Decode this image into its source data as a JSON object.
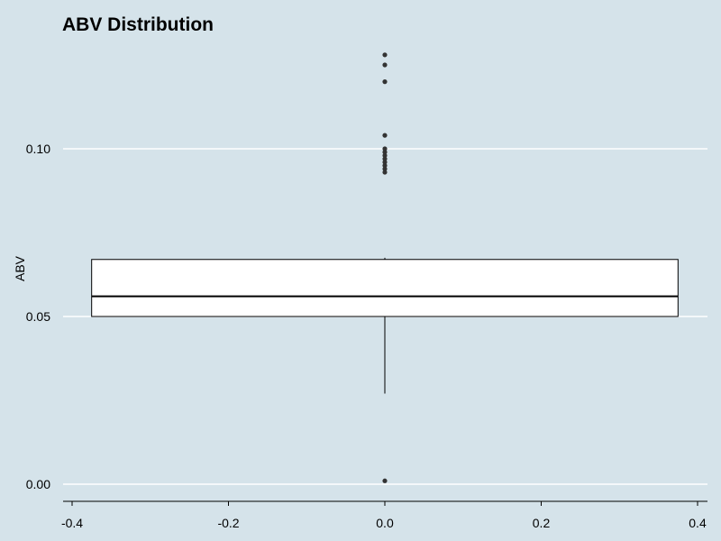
{
  "chart_data": {
    "type": "boxplot",
    "title": "ABV Distribution",
    "xlabel": "",
    "ylabel": "ABV",
    "xlim": [
      -0.41,
      0.41
    ],
    "ylim": [
      -0.005,
      0.135
    ],
    "x_ticks": [
      -0.4,
      -0.2,
      0.0,
      0.2,
      0.4
    ],
    "x_tick_labels": [
      "-0.4",
      "-0.2",
      "0.0",
      "0.2",
      "0.4"
    ],
    "y_ticks": [
      0.0,
      0.05,
      0.1
    ],
    "y_tick_labels": [
      "0.00",
      "0.05",
      "0.10"
    ],
    "grid": {
      "horizontal": true,
      "vertical": false
    },
    "colors": {
      "background": "#d5e3ea",
      "grid": "#ffffff",
      "box_fill": "#ffffff",
      "line": "#000000",
      "outlier": "#333333"
    },
    "box": {
      "x_center": 0.0,
      "x_left": -0.375,
      "x_right": 0.375,
      "whisker_low": 0.027,
      "q1": 0.05,
      "median": 0.056,
      "q3": 0.067,
      "whisker_high": 0.0675,
      "outliers": [
        0.001,
        0.093,
        0.094,
        0.095,
        0.096,
        0.097,
        0.098,
        0.099,
        0.1,
        0.104,
        0.12,
        0.125,
        0.128
      ]
    }
  }
}
